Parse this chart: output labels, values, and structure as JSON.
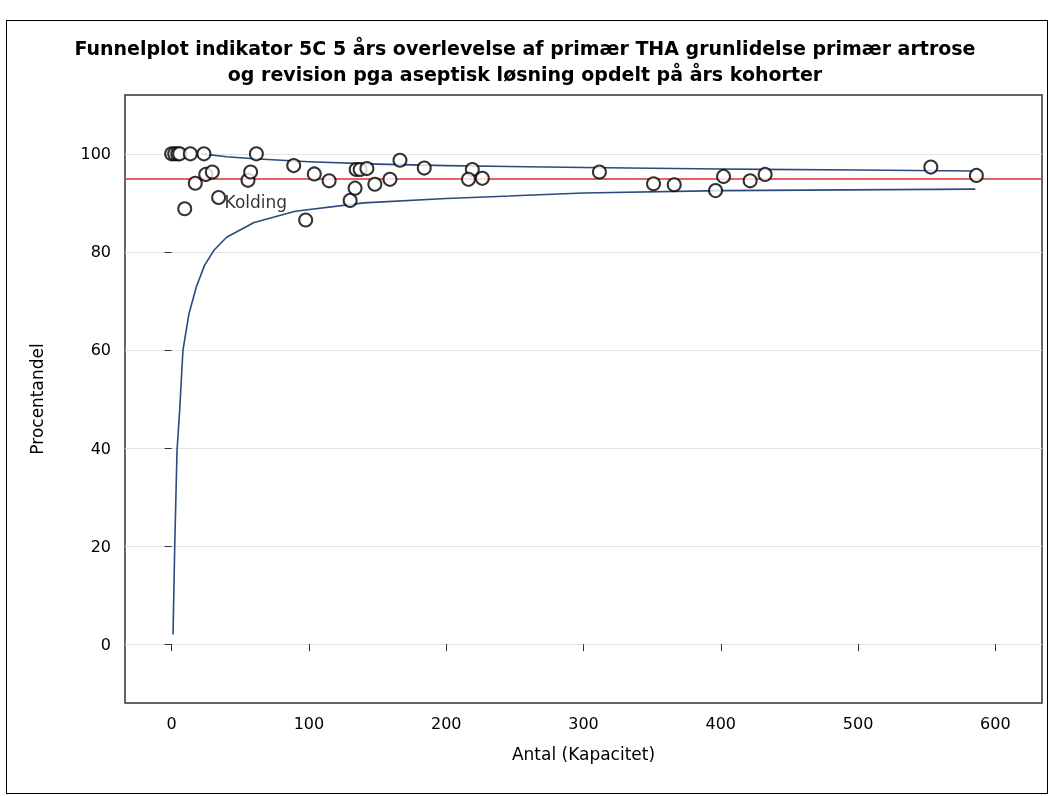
{
  "chart_data": {
    "type": "scatter",
    "title": "Funnelplot indikator 5C 5 års overlevelse af primær THA grunlidelse primær artrose\nog revision pga aseptisk løsning opdelt på års kohorter",
    "xlabel": "Antal (Kapacitet)",
    "ylabel": "Procentandel",
    "xlim": [
      -34,
      634
    ],
    "xticks": [
      0,
      100,
      200,
      300,
      400,
      500,
      600
    ],
    "ylim": [
      -12,
      112
    ],
    "yticks": [
      0,
      20,
      40,
      60,
      80,
      100
    ],
    "grid": "y",
    "annotations": [
      {
        "text": "Kolding",
        "x": 34.2,
        "y": 91.1
      }
    ],
    "ref_lines": [
      {
        "axis": "y",
        "value": 95,
        "color": "#e0302a"
      }
    ],
    "series": [
      {
        "marker": "circle",
        "color": "#000000",
        "x": [
          0,
          2.2,
          4.4,
          5.8,
          13.6,
          23.5,
          61.7,
          9.5,
          17.2,
          24.8,
          29.6,
          34.2,
          55.6,
          57.5,
          88.9,
          97.6,
          103.9,
          114.7,
          130,
          133.6,
          134.4,
          137.3,
          142.2,
          148,
          159,
          166.3,
          184,
          219,
          216.2,
          226.3,
          311.6,
          351,
          366.1,
          396.2,
          402,
          421.4,
          432.3,
          553,
          586.2
        ],
        "values": [
          100,
          100,
          100,
          100,
          100,
          100,
          100,
          88.8,
          94.0,
          95.8,
          96.3,
          91.1,
          94.6,
          96.3,
          97.6,
          86.5,
          95.9,
          94.5,
          90.5,
          93.0,
          96.8,
          96.8,
          97.0,
          93.8,
          94.8,
          98.7,
          97.1,
          96.8,
          94.8,
          95.0,
          96.3,
          93.9,
          93.7,
          92.5,
          95.4,
          94.5,
          95.8,
          97.3,
          95.6
        ]
      },
      {
        "type": "line",
        "marker": "none",
        "color": "#2b4a7e",
        "x": [
          22,
          40,
          60,
          100,
          150,
          200,
          300,
          400,
          500,
          584
        ],
        "values": [
          100,
          99.4,
          99.0,
          98.4,
          97.9,
          97.6,
          97.2,
          96.9,
          96.7,
          96.5
        ]
      },
      {
        "type": "line",
        "marker": "none",
        "color": "#2b4a7e",
        "x": [
          1,
          2.2,
          3.9,
          5.8,
          8.2,
          12.6,
          18,
          24,
          31,
          40,
          60,
          90,
          140,
          200,
          300,
          400,
          585
        ],
        "values": [
          2.1,
          19.7,
          39.5,
          47.6,
          59.9,
          67.4,
          72.9,
          77.3,
          80.4,
          83,
          86,
          88.3,
          90,
          90.9,
          92,
          92.5,
          92.8
        ]
      }
    ]
  }
}
